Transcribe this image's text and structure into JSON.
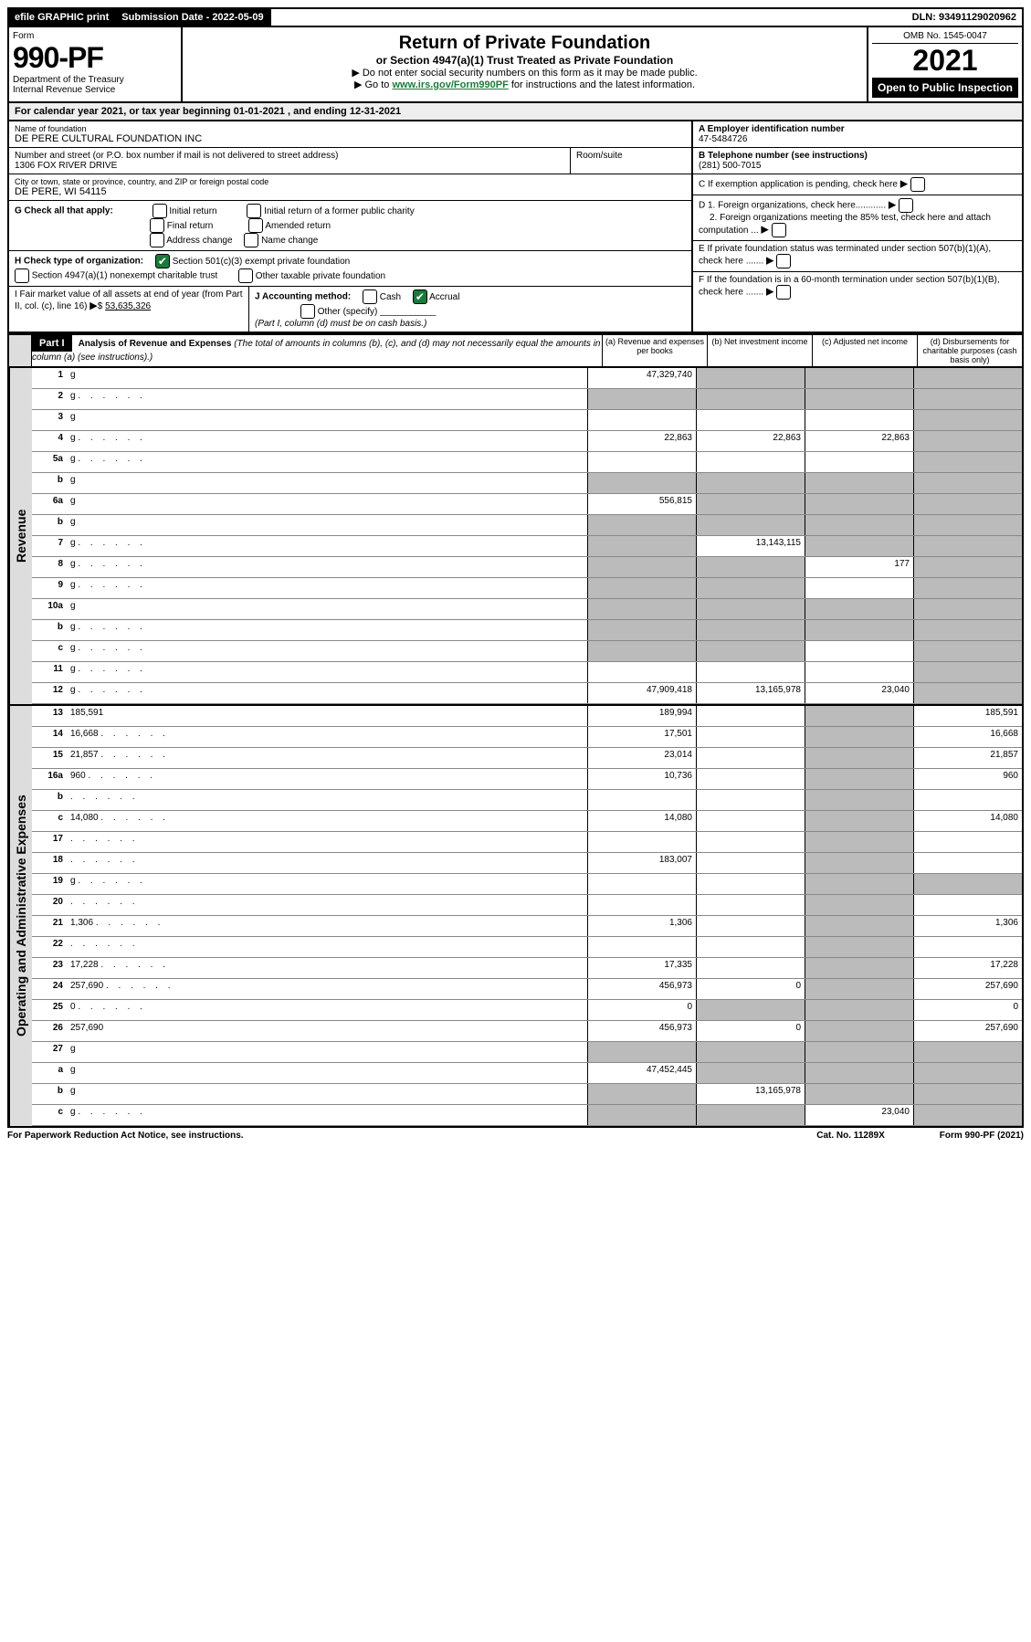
{
  "meta": {
    "efile": "efile GRAPHIC print",
    "submission_label": "Submission Date - 2022-05-09",
    "dln": "DLN: 93491129020962",
    "form_word": "Form",
    "form_number": "990-PF",
    "dept1": "Department of the Treasury",
    "dept2": "Internal Revenue Service",
    "title": "Return of Private Foundation",
    "subtitle": "or Section 4947(a)(1) Trust Treated as Private Foundation",
    "note1": "▶ Do not enter social security numbers on this form as it may be made public.",
    "note2_pre": "▶ Go to ",
    "note2_link": "www.irs.gov/Form990PF",
    "note2_post": " for instructions and the latest information.",
    "omb": "OMB No. 1545-0047",
    "year": "2021",
    "open": "Open to Public Inspection"
  },
  "cal": {
    "line_pre": "For calendar year 2021, or tax year beginning ",
    "begin": "01-01-2021",
    "mid": " , and ending ",
    "end": "12-31-2021"
  },
  "entity": {
    "name_label": "Name of foundation",
    "name": "DE PERE CULTURAL FOUNDATION INC",
    "addr_label": "Number and street (or P.O. box number if mail is not delivered to street address)",
    "addr": "1306 FOX RIVER DRIVE",
    "room_label": "Room/suite",
    "city_label": "City or town, state or province, country, and ZIP or foreign postal code",
    "city": "DE PERE, WI  54115",
    "a_label": "A Employer identification number",
    "a_val": "47-5484726",
    "b_label": "B Telephone number (see instructions)",
    "b_val": "(281) 500-7015",
    "c_label": "C If exemption application is pending, check here",
    "d1": "D 1. Foreign organizations, check here............",
    "d2": "2. Foreign organizations meeting the 85% test, check here and attach computation ...",
    "e": "E  If private foundation status was terminated under section 507(b)(1)(A), check here .......",
    "f": "F  If the foundation is in a 60-month termination under section 507(b)(1)(B), check here .......",
    "g_label": "G Check all that apply:",
    "g_opts": [
      "Initial return",
      "Final return",
      "Address change",
      "Initial return of a former public charity",
      "Amended return",
      "Name change"
    ],
    "h_label": "H Check type of organization:",
    "h1": "Section 501(c)(3) exempt private foundation",
    "h2": "Section 4947(a)(1) nonexempt charitable trust",
    "h3": "Other taxable private foundation",
    "i_label": "I Fair market value of all assets at end of year (from Part II, col. (c), line 16)",
    "i_val": "53,635,326",
    "j_label": "J Accounting method:",
    "j_cash": "Cash",
    "j_accrual": "Accrual",
    "j_other": "Other (specify)",
    "j_note": "(Part I, column (d) must be on cash basis.)"
  },
  "part1": {
    "tag": "Part I",
    "title": "Analysis of Revenue and Expenses",
    "title_note": " (The total of amounts in columns (b), (c), and (d) may not necessarily equal the amounts in column (a) (see instructions).)",
    "cols": {
      "a": "(a) Revenue and expenses per books",
      "b": "(b) Net investment income",
      "c": "(c) Adjusted net income",
      "d": "(d) Disbursements for charitable purposes (cash basis only)"
    }
  },
  "sections": {
    "revenue": "Revenue",
    "expenses": "Operating and Administrative Expenses"
  },
  "rows": [
    {
      "n": "1",
      "d": "g",
      "a": "47,329,740",
      "b": "g",
      "c": "g"
    },
    {
      "n": "2",
      "d": "g",
      "a": "g",
      "b": "g",
      "c": "g",
      "dots": true
    },
    {
      "n": "3",
      "d": "g",
      "a": "",
      "b": "",
      "c": ""
    },
    {
      "n": "4",
      "d": "g",
      "a": "22,863",
      "b": "22,863",
      "c": "22,863",
      "dots": true
    },
    {
      "n": "5a",
      "d": "g",
      "a": "",
      "b": "",
      "c": "",
      "dots": true
    },
    {
      "n": "b",
      "d": "g",
      "a": "g",
      "b": "g",
      "c": "g",
      "inline": true
    },
    {
      "n": "6a",
      "d": "g",
      "a": "556,815",
      "b": "g",
      "c": "g"
    },
    {
      "n": "b",
      "d": "g",
      "a": "g",
      "b": "g",
      "c": "g"
    },
    {
      "n": "7",
      "d": "g",
      "a": "g",
      "b": "13,143,115",
      "c": "g",
      "dots": true
    },
    {
      "n": "8",
      "d": "g",
      "a": "g",
      "b": "g",
      "c": "177",
      "dots": true
    },
    {
      "n": "9",
      "d": "g",
      "a": "g",
      "b": "g",
      "c": "",
      "dots": true
    },
    {
      "n": "10a",
      "d": "g",
      "a": "g",
      "b": "g",
      "c": "g",
      "inline": true
    },
    {
      "n": "b",
      "d": "g",
      "a": "g",
      "b": "g",
      "c": "g",
      "inline": true,
      "dots": true
    },
    {
      "n": "c",
      "d": "g",
      "a": "g",
      "b": "g",
      "c": "",
      "dots": true
    },
    {
      "n": "11",
      "d": "g",
      "a": "",
      "b": "",
      "c": "",
      "dots": true
    },
    {
      "n": "12",
      "d": "g",
      "a": "47,909,418",
      "b": "13,165,978",
      "c": "23,040",
      "dots": true,
      "bold": true
    }
  ],
  "exp_rows": [
    {
      "n": "13",
      "d": "185,591",
      "a": "189,994",
      "b": "",
      "c": "g"
    },
    {
      "n": "14",
      "d": "16,668",
      "a": "17,501",
      "b": "",
      "c": "g",
      "dots": true
    },
    {
      "n": "15",
      "d": "21,857",
      "a": "23,014",
      "b": "",
      "c": "g",
      "dots": true
    },
    {
      "n": "16a",
      "d": "960",
      "a": "10,736",
      "b": "",
      "c": "g",
      "dots": true
    },
    {
      "n": "b",
      "d": "",
      "a": "",
      "b": "",
      "c": "g",
      "dots": true
    },
    {
      "n": "c",
      "d": "14,080",
      "a": "14,080",
      "b": "",
      "c": "g",
      "dots": true
    },
    {
      "n": "17",
      "d": "",
      "a": "",
      "b": "",
      "c": "g",
      "dots": true
    },
    {
      "n": "18",
      "d": "",
      "a": "183,007",
      "b": "",
      "c": "g",
      "dots": true
    },
    {
      "n": "19",
      "d": "g",
      "a": "",
      "b": "",
      "c": "g",
      "dots": true
    },
    {
      "n": "20",
      "d": "",
      "a": "",
      "b": "",
      "c": "g",
      "dots": true
    },
    {
      "n": "21",
      "d": "1,306",
      "a": "1,306",
      "b": "",
      "c": "g",
      "dots": true
    },
    {
      "n": "22",
      "d": "",
      "a": "",
      "b": "",
      "c": "g",
      "dots": true
    },
    {
      "n": "23",
      "d": "17,228",
      "a": "17,335",
      "b": "",
      "c": "g",
      "dots": true
    },
    {
      "n": "24",
      "d": "257,690",
      "a": "456,973",
      "b": "0",
      "c": "g",
      "dots": true
    },
    {
      "n": "25",
      "d": "0",
      "a": "0",
      "b": "g",
      "c": "g",
      "dots": true
    },
    {
      "n": "26",
      "d": "257,690",
      "a": "456,973",
      "b": "0",
      "c": "g"
    },
    {
      "n": "27",
      "d": "g",
      "a": "g",
      "b": "g",
      "c": "g"
    },
    {
      "n": "a",
      "d": "g",
      "a": "47,452,445",
      "b": "g",
      "c": "g"
    },
    {
      "n": "b",
      "d": "g",
      "a": "g",
      "b": "13,165,978",
      "c": "g"
    },
    {
      "n": "c",
      "d": "g",
      "a": "g",
      "b": "g",
      "c": "23,040",
      "dots": true
    }
  ],
  "footer": {
    "left": "For Paperwork Reduction Act Notice, see instructions.",
    "mid": "Cat. No. 11289X",
    "right": "Form 990-PF (2021)"
  },
  "colors": {
    "link": "#1a7a3a",
    "grey": "#bbbbbb",
    "headbg": "#dddddd"
  }
}
